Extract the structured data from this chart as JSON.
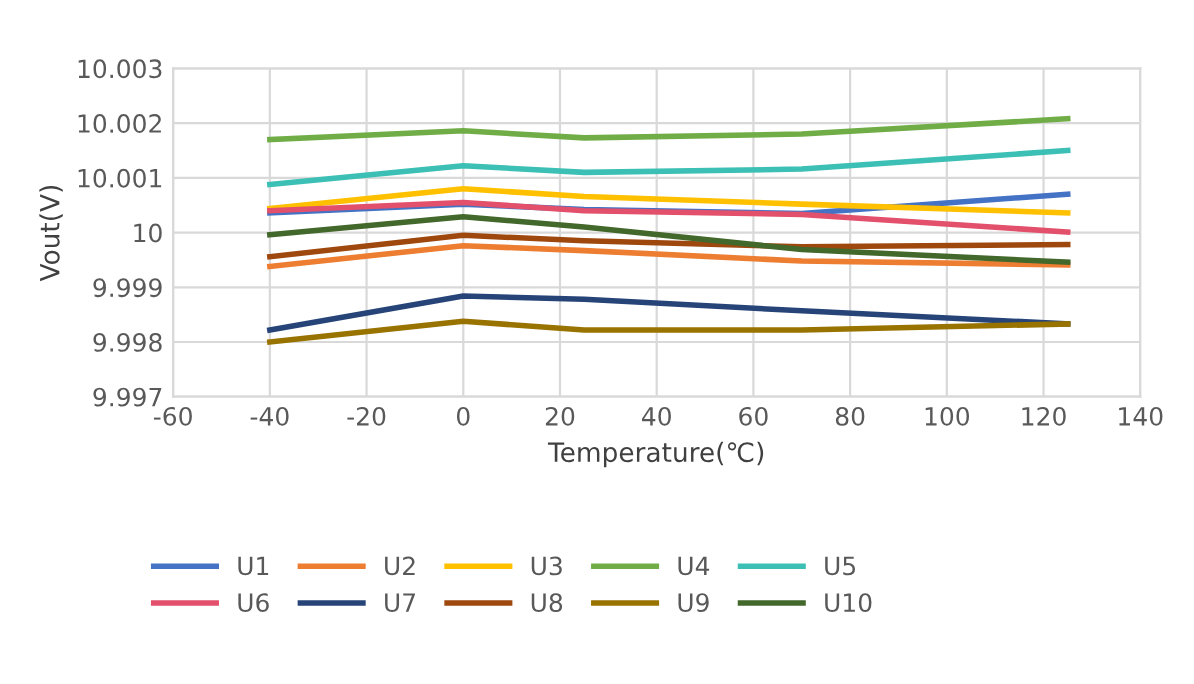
{
  "chart_data": {
    "type": "line",
    "xlabel": "Temperature(℃)",
    "ylabel": "Vout(V)",
    "x": [
      -40,
      0,
      25,
      70,
      125
    ],
    "series": [
      {
        "name": "U1",
        "color": "#4472c4",
        "values": [
          10.00036,
          10.00052,
          10.00042,
          10.00035,
          10.0007
        ]
      },
      {
        "name": "U2",
        "color": "#ed7d31",
        "values": [
          9.99938,
          9.99976,
          9.99967,
          9.99948,
          9.99941
        ]
      },
      {
        "name": "U3",
        "color": "#ffc000",
        "values": [
          10.00044,
          10.0008,
          10.00066,
          10.00052,
          10.00036
        ]
      },
      {
        "name": "U4",
        "color": "#70ad47",
        "values": [
          10.0017,
          10.00186,
          10.00173,
          10.0018,
          10.00208
        ]
      },
      {
        "name": "U5",
        "color": "#3cbfb4",
        "values": [
          10.00088,
          10.00122,
          10.0011,
          10.00116,
          10.0015
        ]
      },
      {
        "name": "U6",
        "color": "#e3506b",
        "values": [
          10.0004,
          10.00055,
          10.0004,
          10.00033,
          10.00001
        ]
      },
      {
        "name": "U7",
        "color": "#264478",
        "values": [
          9.99822,
          9.99884,
          9.99878,
          9.99857,
          9.99833
        ]
      },
      {
        "name": "U8",
        "color": "#9e480e",
        "values": [
          9.99956,
          9.99995,
          9.99985,
          9.99974,
          9.99978
        ]
      },
      {
        "name": "U9",
        "color": "#997300",
        "values": [
          9.998,
          9.99838,
          9.99822,
          9.99822,
          9.99833
        ]
      },
      {
        "name": "U10",
        "color": "#43682b",
        "values": [
          9.99996,
          10.00029,
          10.0001,
          9.99969,
          9.99946
        ]
      }
    ],
    "xlim": [
      -60,
      140
    ],
    "xticks": [
      -60,
      -40,
      -20,
      0,
      20,
      40,
      60,
      80,
      100,
      120,
      140
    ],
    "ylim": [
      9.997,
      10.003
    ],
    "yticks": [
      9.997,
      9.998,
      9.999,
      10,
      10.001,
      10.002,
      10.003
    ],
    "grid": true,
    "legend": "bottom",
    "marker": "none",
    "line_style": "solid"
  }
}
